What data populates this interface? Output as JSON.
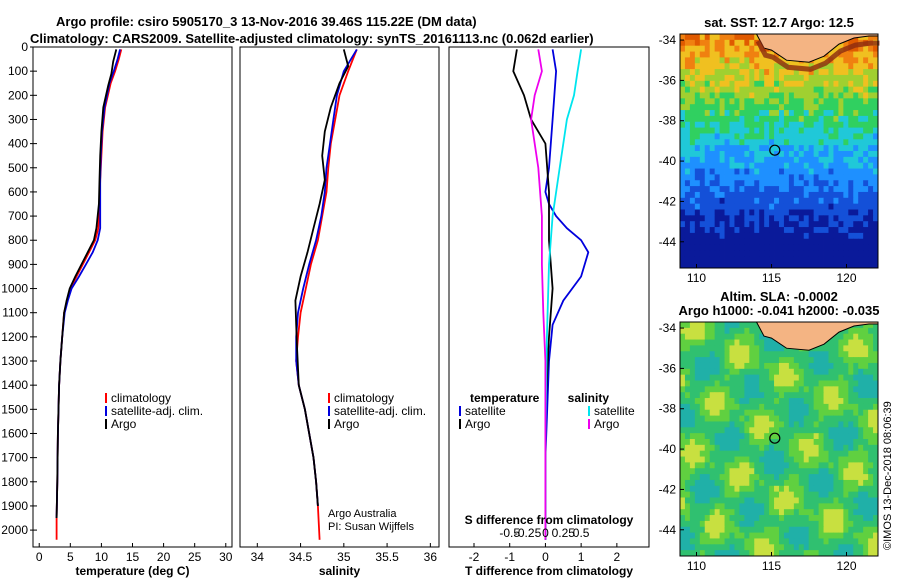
{
  "header": {
    "line1": "Argo profile: csiro 5905170_3 13-Nov-2016 39.46S 115.22E (DM data)",
    "line2": "Climatology: CARS2009. Satellite-adjusted climatology: synTS_20161113.nc (0.062d earlier)"
  },
  "colors": {
    "climatology": "#ff0000",
    "satellite": "#0000dd",
    "argo": "#000000",
    "satellite_salinity": "#00e5ee",
    "argo_salinity": "#ee00ee"
  },
  "chart_data": [
    {
      "type": "line",
      "panel": "temperature",
      "xlabel": "temperature (deg C)",
      "xlim": [
        -1,
        31
      ],
      "ylim": [
        2070,
        0
      ],
      "yreversed": true,
      "xticks": [
        0,
        5,
        10,
        15,
        20,
        25,
        30
      ],
      "yticks": [
        0,
        100,
        200,
        300,
        400,
        500,
        600,
        700,
        800,
        900,
        1000,
        1100,
        1200,
        1300,
        1400,
        1500,
        1600,
        1700,
        1800,
        1900,
        2000
      ],
      "legend": [
        "climatology",
        "satellite-adj. clim.",
        "Argo"
      ],
      "series": [
        {
          "name": "climatology",
          "color": "#ff0000",
          "x": [
            13.2,
            12.8,
            12.2,
            11.5,
            10.6,
            10.2,
            10.0,
            9.8,
            9.7,
            9.5,
            9.0,
            8.0,
            7.0,
            6.0,
            5.0,
            4.5,
            4.0,
            3.7,
            3.4,
            3.2,
            3.0,
            2.9,
            2.8,
            2.8
          ],
          "y": [
            10,
            50,
            100,
            150,
            250,
            350,
            450,
            550,
            650,
            750,
            800,
            850,
            900,
            950,
            1000,
            1050,
            1100,
            1200,
            1300,
            1400,
            1600,
            1800,
            1950,
            2040
          ]
        },
        {
          "name": "satellite-adj. clim.",
          "color": "#0000dd",
          "x": [
            13.0,
            12.6,
            12.0,
            11.3,
            10.5,
            10.1,
            9.9,
            9.8,
            9.8,
            9.8,
            9.4,
            8.6,
            7.5,
            6.4,
            5.2,
            4.6,
            4.1,
            3.7,
            3.4,
            3.2,
            3.0,
            2.9,
            2.8
          ],
          "y": [
            10,
            50,
            100,
            150,
            250,
            350,
            450,
            550,
            650,
            750,
            800,
            850,
            900,
            950,
            1000,
            1050,
            1100,
            1200,
            1300,
            1400,
            1600,
            1800,
            1950
          ]
        },
        {
          "name": "Argo",
          "color": "#000000",
          "x": [
            12.4,
            11.9,
            11.6,
            11.1,
            10.3,
            10.0,
            9.8,
            9.7,
            9.6,
            9.2,
            8.8,
            7.8,
            6.8,
            5.8,
            4.9,
            4.4,
            4.0,
            3.7,
            3.4,
            3.2,
            3.0,
            2.9,
            2.8
          ],
          "y": [
            10,
            60,
            110,
            160,
            250,
            350,
            450,
            550,
            650,
            750,
            800,
            850,
            900,
            950,
            1000,
            1050,
            1100,
            1200,
            1300,
            1400,
            1600,
            1800,
            1950
          ]
        }
      ]
    },
    {
      "type": "line",
      "panel": "salinity",
      "xlabel": "salinity",
      "xlim": [
        33.8,
        36.1
      ],
      "ylim": [
        2070,
        0
      ],
      "yreversed": true,
      "xticks": [
        34,
        34.5,
        35,
        35.5,
        36
      ],
      "xticklabels": [
        "34",
        "34.5",
        "35",
        "35.5",
        "36"
      ],
      "legend": [
        "climatology",
        "satellite-adj. clim.",
        "Argo"
      ],
      "annotations": [
        "Argo Australia",
        "PI: Susan Wijffels"
      ],
      "series": [
        {
          "name": "climatology",
          "color": "#ff0000",
          "x": [
            35.15,
            35.05,
            34.95,
            34.9,
            34.85,
            34.82,
            34.8,
            34.75,
            34.7,
            34.62,
            34.56,
            34.5,
            34.47,
            34.45,
            34.48,
            34.55,
            34.6,
            34.65,
            34.68,
            34.7,
            34.72
          ],
          "y": [
            10,
            100,
            200,
            300,
            400,
            500,
            600,
            700,
            800,
            900,
            1000,
            1100,
            1200,
            1300,
            1400,
            1500,
            1600,
            1700,
            1800,
            1900,
            2040
          ]
        },
        {
          "name": "satellite-adj. clim.",
          "color": "#0000dd",
          "x": [
            35.15,
            35.0,
            34.92,
            34.88,
            34.84,
            34.8,
            34.78,
            34.74,
            34.68,
            34.6,
            34.53,
            34.47,
            34.45,
            34.45,
            34.48,
            34.55,
            34.6,
            34.65,
            34.68,
            34.7
          ],
          "y": [
            10,
            100,
            200,
            300,
            400,
            500,
            600,
            700,
            800,
            900,
            1000,
            1100,
            1200,
            1300,
            1400,
            1500,
            1600,
            1700,
            1800,
            1900
          ]
        },
        {
          "name": "Argo",
          "color": "#000000",
          "x": [
            35.0,
            35.05,
            34.95,
            34.85,
            34.78,
            34.75,
            34.78,
            34.72,
            34.65,
            34.58,
            34.5,
            34.44,
            34.45,
            34.46,
            34.48,
            34.55,
            34.6,
            34.65,
            34.68,
            34.7
          ],
          "y": [
            10,
            80,
            150,
            250,
            350,
            450,
            550,
            650,
            750,
            850,
            950,
            1050,
            1150,
            1250,
            1400,
            1500,
            1600,
            1700,
            1800,
            1900
          ]
        }
      ]
    },
    {
      "type": "line",
      "panel": "difference",
      "xlabel": "T difference from climatology",
      "toplabel": "S difference from climatology",
      "xlim": [
        -2.7,
        2.9
      ],
      "ylim": [
        2070,
        0
      ],
      "yreversed": true,
      "xticks": [
        -2,
        -1,
        0,
        1,
        2
      ],
      "sticks": [
        -0.5,
        -0.25,
        0,
        0.25,
        0.5
      ],
      "sticklabels": [
        "-0.5",
        "-0.25",
        "0",
        "0.25",
        "0.5"
      ],
      "legend_left_title": "temperature",
      "legend_right_title": "salinity",
      "legend_left": [
        "satellite",
        "Argo"
      ],
      "legend_right": [
        "satellite",
        "Argo"
      ],
      "series": [
        {
          "name": "T satellite",
          "color": "#0000dd",
          "x": [
            0.2,
            0.3,
            0.2,
            0.1,
            0.0,
            0.1,
            0.3,
            0.6,
            1.0,
            1.2,
            1.0,
            0.5,
            0.2,
            0.1,
            0.05,
            0.0,
            0.0,
            0.0
          ],
          "y": [
            10,
            100,
            300,
            500,
            600,
            650,
            700,
            750,
            800,
            850,
            950,
            1050,
            1150,
            1300,
            1500,
            1700,
            1900,
            2040
          ]
        },
        {
          "name": "T Argo",
          "color": "#000000",
          "x": [
            -0.8,
            -0.9,
            -0.6,
            -0.4,
            0.0,
            0.1,
            0.1,
            0.2,
            0.1,
            0.0,
            0.0,
            0.0
          ],
          "y": [
            10,
            100,
            200,
            300,
            400,
            600,
            800,
            1000,
            1200,
            1500,
            1800,
            2040
          ]
        },
        {
          "name": "S satellite",
          "color": "#00e5ee",
          "x": [
            0.5,
            0.45,
            0.4,
            0.3,
            0.2,
            0.1,
            0.05,
            0.02,
            0.0,
            0.0
          ],
          "y": [
            10,
            100,
            200,
            300,
            500,
            700,
            900,
            1200,
            1600,
            2040
          ]
        },
        {
          "name": "S Argo",
          "color": "#ee00ee",
          "x": [
            -0.1,
            -0.05,
            -0.15,
            -0.2,
            -0.1,
            -0.05,
            -0.05,
            -0.03,
            0.0,
            0.0
          ],
          "y": [
            10,
            100,
            200,
            300,
            500,
            700,
            900,
            1100,
            1300,
            2040
          ]
        }
      ]
    },
    {
      "type": "heatmap",
      "panel": "sst-map",
      "title": "sat. SST: 12.7 Argo: 12.5",
      "xlim": [
        108.9,
        122.1
      ],
      "ylim": [
        -45.3,
        -33.7
      ],
      "xticks": [
        110,
        115,
        120
      ],
      "yticks": [
        -34,
        -36,
        -38,
        -40,
        -42,
        -44
      ],
      "marker": {
        "lon": 115.22,
        "lat": -39.46
      }
    },
    {
      "type": "heatmap",
      "panel": "sla-map",
      "title": "Altim. SLA: -0.0002",
      "subtitle": "Argo h1000: -0.041 h2000: -0.035",
      "xlim": [
        108.9,
        122.1
      ],
      "ylim": [
        -45.3,
        -33.7
      ],
      "xticks": [
        110,
        115,
        120
      ],
      "yticks": [
        -34,
        -36,
        -38,
        -40,
        -42,
        -44
      ],
      "marker": {
        "lon": 115.22,
        "lat": -39.46
      }
    }
  ],
  "footer": {
    "stamp": "©IMOS 13-Dec-2018 08:06:39"
  }
}
